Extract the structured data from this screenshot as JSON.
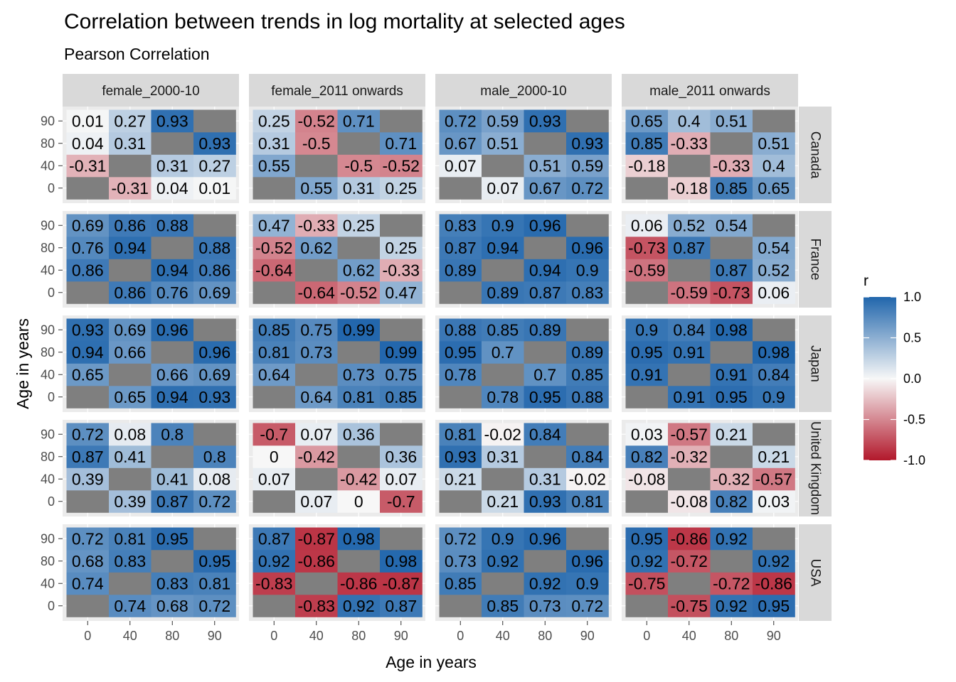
{
  "chart_data": {
    "type": "heatmap",
    "title": "Correlation between trends in log mortality at selected ages",
    "subtitle": "Pearson Correlation",
    "xlabel": "Age in years",
    "ylabel": "Age in years",
    "ages": [
      "0",
      "40",
      "80",
      "90"
    ],
    "facet_columns": [
      "female_2000-10",
      "female_2011 onwards",
      "male_2000-10",
      "male_2011 onwards"
    ],
    "facet_rows": [
      "Canada",
      "France",
      "Japan",
      "United Kingdom",
      "USA"
    ],
    "legend": {
      "title": "r",
      "ticks": [
        "1.0",
        "0.5",
        "0.0",
        "-0.5",
        "-1.0"
      ],
      "limits": [
        -1,
        1
      ],
      "position": "right"
    },
    "colors": {
      "low": "#b2182b",
      "mid": "#f7f7f7",
      "high": "#2166ac",
      "na": "#7f7f7f",
      "panel_bg": "#ebebeb",
      "strip_bg": "#d9d9d9",
      "grid": "#ffffff"
    },
    "matrices": {
      "Canada": {
        "female_2000-10": [
          [
            null,
            -0.31,
            0.04,
            0.01
          ],
          [
            -0.31,
            null,
            0.31,
            0.27
          ],
          [
            0.04,
            0.31,
            null,
            0.93
          ],
          [
            0.01,
            0.27,
            0.93,
            null
          ]
        ],
        "female_2011 onwards": [
          [
            null,
            0.55,
            0.31,
            0.25
          ],
          [
            0.55,
            null,
            -0.5,
            -0.52
          ],
          [
            0.31,
            -0.5,
            null,
            0.71
          ],
          [
            0.25,
            -0.52,
            0.71,
            null
          ]
        ],
        "male_2000-10": [
          [
            null,
            0.07,
            0.67,
            0.72
          ],
          [
            0.07,
            null,
            0.51,
            0.59
          ],
          [
            0.67,
            0.51,
            null,
            0.93
          ],
          [
            0.72,
            0.59,
            0.93,
            null
          ]
        ],
        "male_2011 onwards": [
          [
            null,
            -0.18,
            0.85,
            0.65
          ],
          [
            -0.18,
            null,
            -0.33,
            0.4
          ],
          [
            0.85,
            -0.33,
            null,
            0.51
          ],
          [
            0.65,
            0.4,
            0.51,
            null
          ]
        ]
      },
      "France": {
        "female_2000-10": [
          [
            null,
            0.86,
            0.76,
            0.69
          ],
          [
            0.86,
            null,
            0.94,
            0.86
          ],
          [
            0.76,
            0.94,
            null,
            0.88
          ],
          [
            0.69,
            0.86,
            0.88,
            null
          ]
        ],
        "female_2011 onwards": [
          [
            null,
            -0.64,
            -0.52,
            0.47
          ],
          [
            -0.64,
            null,
            0.62,
            -0.33
          ],
          [
            -0.52,
            0.62,
            null,
            0.25
          ],
          [
            0.47,
            -0.33,
            0.25,
            null
          ]
        ],
        "male_2000-10": [
          [
            null,
            0.89,
            0.87,
            0.83
          ],
          [
            0.89,
            null,
            0.94,
            0.9
          ],
          [
            0.87,
            0.94,
            null,
            0.96
          ],
          [
            0.83,
            0.9,
            0.96,
            null
          ]
        ],
        "male_2011 onwards": [
          [
            null,
            -0.59,
            -0.73,
            0.06
          ],
          [
            -0.59,
            null,
            0.87,
            0.52
          ],
          [
            -0.73,
            0.87,
            null,
            0.54
          ],
          [
            0.06,
            0.52,
            0.54,
            null
          ]
        ]
      },
      "Japan": {
        "female_2000-10": [
          [
            null,
            0.65,
            0.94,
            0.93
          ],
          [
            0.65,
            null,
            0.66,
            0.69
          ],
          [
            0.94,
            0.66,
            null,
            0.96
          ],
          [
            0.93,
            0.69,
            0.96,
            null
          ]
        ],
        "female_2011 onwards": [
          [
            null,
            0.64,
            0.81,
            0.85
          ],
          [
            0.64,
            null,
            0.73,
            0.75
          ],
          [
            0.81,
            0.73,
            null,
            0.99
          ],
          [
            0.85,
            0.75,
            0.99,
            null
          ]
        ],
        "male_2000-10": [
          [
            null,
            0.78,
            0.95,
            0.88
          ],
          [
            0.78,
            null,
            0.7,
            0.85
          ],
          [
            0.95,
            0.7,
            null,
            0.89
          ],
          [
            0.88,
            0.85,
            0.89,
            null
          ]
        ],
        "male_2011 onwards": [
          [
            null,
            0.91,
            0.95,
            0.9
          ],
          [
            0.91,
            null,
            0.91,
            0.84
          ],
          [
            0.95,
            0.91,
            null,
            0.98
          ],
          [
            0.9,
            0.84,
            0.98,
            null
          ]
        ]
      },
      "United Kingdom": {
        "female_2000-10": [
          [
            null,
            0.39,
            0.87,
            0.72
          ],
          [
            0.39,
            null,
            0.41,
            0.08
          ],
          [
            0.87,
            0.41,
            null,
            0.8
          ],
          [
            0.72,
            0.08,
            0.8,
            null
          ]
        ],
        "female_2011 onwards": [
          [
            null,
            0.07,
            0,
            -0.7
          ],
          [
            0.07,
            null,
            -0.42,
            0.07
          ],
          [
            0,
            -0.42,
            null,
            0.36
          ],
          [
            -0.7,
            0.07,
            0.36,
            null
          ]
        ],
        "male_2000-10": [
          [
            null,
            0.21,
            0.93,
            0.81
          ],
          [
            0.21,
            null,
            0.31,
            -0.02
          ],
          [
            0.93,
            0.31,
            null,
            0.84
          ],
          [
            0.81,
            -0.02,
            0.84,
            null
          ]
        ],
        "male_2011 onwards": [
          [
            null,
            -0.08,
            0.82,
            0.03
          ],
          [
            -0.08,
            null,
            -0.32,
            -0.57
          ],
          [
            0.82,
            -0.32,
            null,
            0.21
          ],
          [
            0.03,
            -0.57,
            0.21,
            null
          ]
        ]
      },
      "USA": {
        "female_2000-10": [
          [
            null,
            0.74,
            0.68,
            0.72
          ],
          [
            0.74,
            null,
            0.83,
            0.81
          ],
          [
            0.68,
            0.83,
            null,
            0.95
          ],
          [
            0.72,
            0.81,
            0.95,
            null
          ]
        ],
        "female_2011 onwards": [
          [
            null,
            -0.83,
            0.92,
            0.87
          ],
          [
            -0.83,
            null,
            -0.86,
            -0.87
          ],
          [
            0.92,
            -0.86,
            null,
            0.98
          ],
          [
            0.87,
            -0.87,
            0.98,
            null
          ]
        ],
        "male_2000-10": [
          [
            null,
            0.85,
            0.73,
            0.72
          ],
          [
            0.85,
            null,
            0.92,
            0.9
          ],
          [
            0.73,
            0.92,
            null,
            0.96
          ],
          [
            0.72,
            0.9,
            0.96,
            null
          ]
        ],
        "male_2011 onwards": [
          [
            null,
            -0.75,
            0.92,
            0.95
          ],
          [
            -0.75,
            null,
            -0.72,
            -0.86
          ],
          [
            0.92,
            -0.72,
            null,
            0.92
          ],
          [
            0.95,
            -0.86,
            0.92,
            null
          ]
        ]
      }
    }
  }
}
